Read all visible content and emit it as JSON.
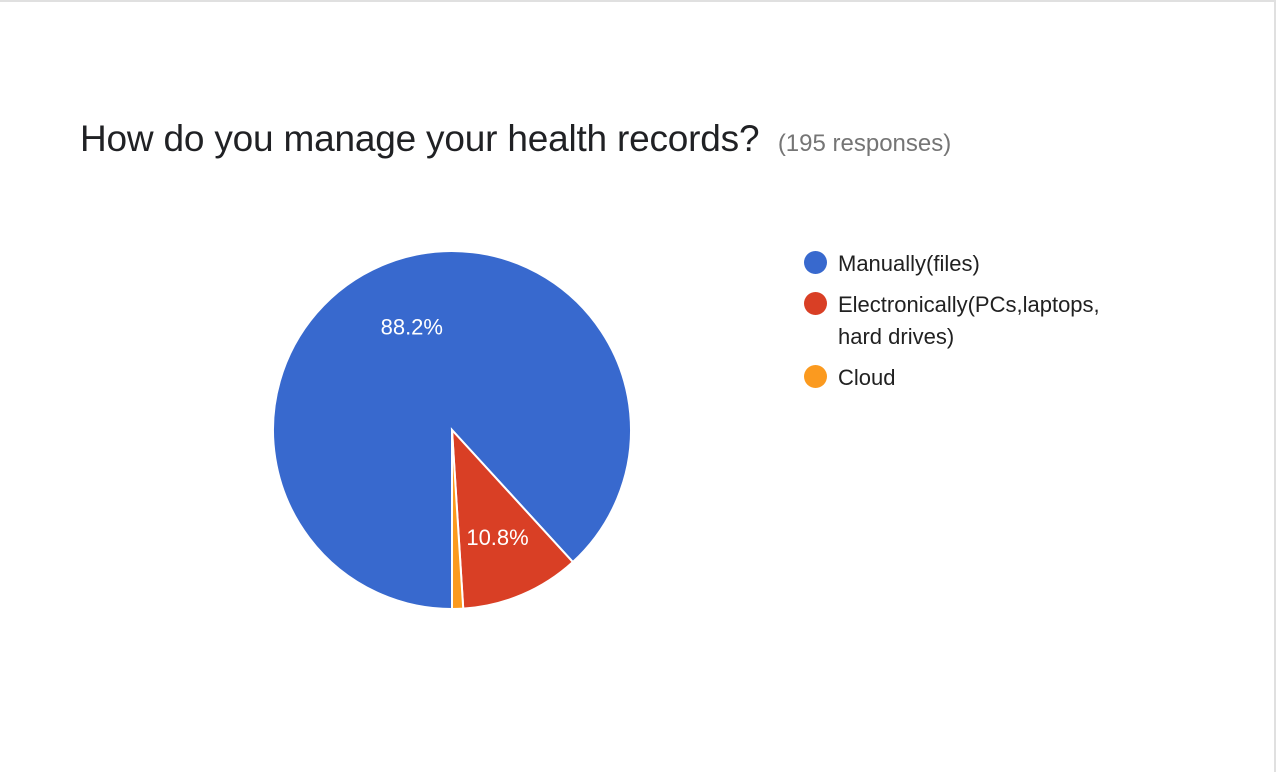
{
  "header": {
    "title": "How do you manage your health records?",
    "responses": "(195 responses)"
  },
  "chart_data": {
    "type": "pie",
    "title": "How do you manage your health records?",
    "subtitle": "(195 responses)",
    "legend_position": "right",
    "slices": [
      {
        "name": "Manually(files)",
        "value": 88.2,
        "label": "88.2%",
        "color": "#3869ce"
      },
      {
        "name": "Electronically(PCs,laptops, hard drives)",
        "value": 10.8,
        "label": "10.8%",
        "color": "#d93f25"
      },
      {
        "name": "Cloud",
        "value": 1.0,
        "label": "",
        "color": "#fb9a1f"
      }
    ]
  }
}
